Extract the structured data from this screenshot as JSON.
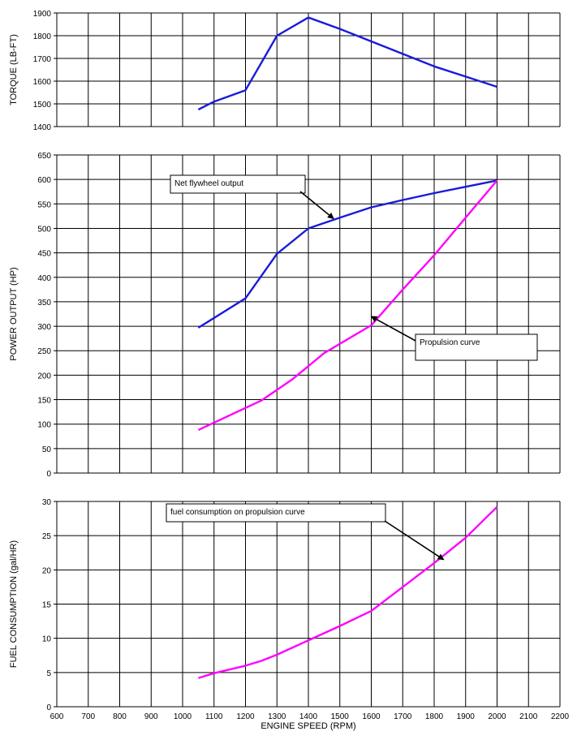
{
  "chart_data": [
    {
      "type": "line",
      "title": "",
      "xlabel": "",
      "ylabel": "TORQUE (LB-FT)",
      "xlim": [
        600,
        2200
      ],
      "ylim": [
        1400,
        1900
      ],
      "ystep": 100,
      "xticks_visible": false,
      "grid": true,
      "series": [
        {
          "color": "#1a1adc",
          "x": [
            1050,
            1100,
            1200,
            1300,
            1400,
            1500,
            1600,
            1700,
            1800,
            1900,
            2000
          ],
          "y": [
            1475,
            1510,
            1560,
            1800,
            1880,
            1830,
            1775,
            1720,
            1665,
            1620,
            1575
          ]
        }
      ],
      "annotations": []
    },
    {
      "type": "line",
      "title": "",
      "xlabel": "",
      "ylabel": "POWER OUTPUT (HP)",
      "xlim": [
        600,
        2200
      ],
      "ylim": [
        0,
        650
      ],
      "ystep": 50,
      "xticks_visible": false,
      "grid": true,
      "series": [
        {
          "color": "#1a1adc",
          "x": [
            1050,
            1200,
            1300,
            1400,
            1500,
            1600,
            1700,
            1800,
            1900,
            2000
          ],
          "y": [
            297,
            357,
            448,
            500,
            522,
            543,
            558,
            572,
            585,
            598
          ]
        },
        {
          "color": "#ff00ff",
          "x": [
            1050,
            1150,
            1250,
            1350,
            1450,
            1600,
            1700,
            1800,
            1900,
            2000
          ],
          "y": [
            88,
            118,
            148,
            192,
            245,
            302,
            375,
            445,
            522,
            598
          ]
        }
      ],
      "annotations": [
        {
          "text": "Net flywheel output",
          "arrow_to": [
            1480,
            520
          ]
        },
        {
          "text": "Propulsion curve",
          "arrow_to": [
            1600,
            320
          ]
        }
      ]
    },
    {
      "type": "line",
      "title": "",
      "xlabel": "ENGINE SPEED (RPM)",
      "ylabel": "FUEL CONSUMPTION (gal/HR)",
      "xlim": [
        600,
        2200
      ],
      "ylim": [
        0,
        30
      ],
      "ystep": 5,
      "xticks_visible": true,
      "xticks": [
        600,
        700,
        800,
        900,
        1000,
        1100,
        1200,
        1300,
        1400,
        1500,
        1600,
        1700,
        1800,
        1900,
        2000,
        2100,
        2200
      ],
      "grid": true,
      "series": [
        {
          "color": "#ff00ff",
          "x": [
            1050,
            1100,
            1200,
            1250,
            1300,
            1400,
            1500,
            1600,
            1700,
            1800,
            1900,
            2000
          ],
          "y": [
            4.2,
            4.9,
            6.0,
            6.7,
            7.6,
            9.7,
            11.8,
            14.0,
            17.5,
            21.0,
            24.7,
            29.2
          ]
        }
      ],
      "annotations": [
        {
          "text": "fuel consumption on propulsion curve",
          "arrow_to": [
            1830,
            21.5
          ]
        }
      ]
    }
  ]
}
